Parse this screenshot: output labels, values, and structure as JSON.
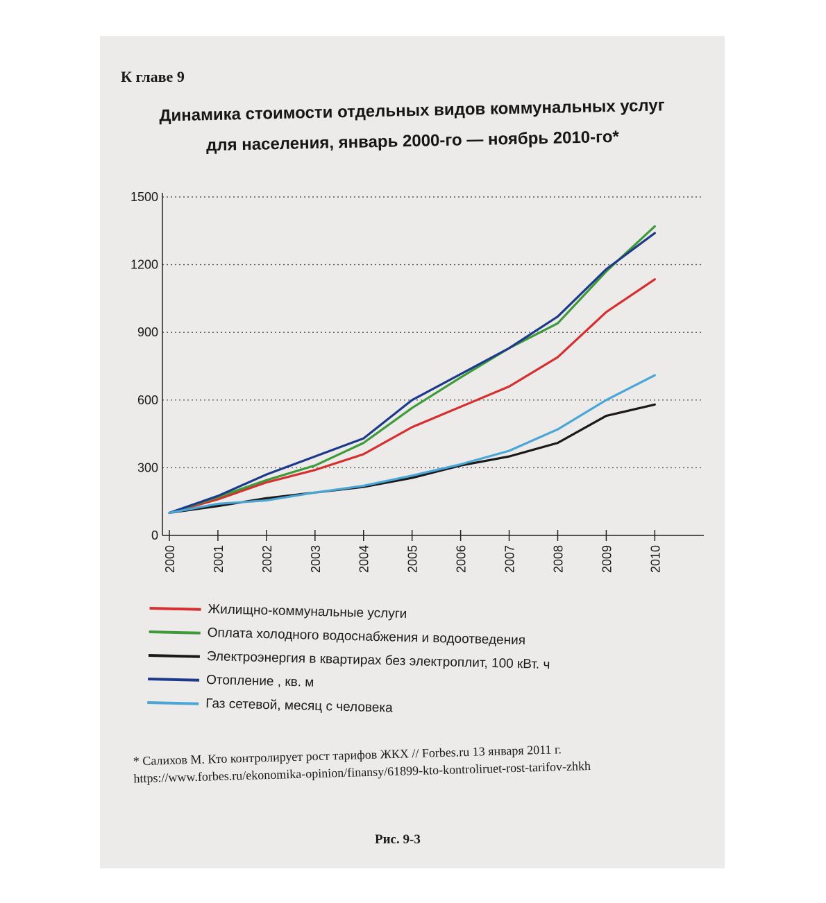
{
  "page": {
    "chapter": "К главе 9",
    "title_line1": "Динамика стоимости отдельных видов коммунальных услуг",
    "title_line2": "для населения, январь 2000-го — ноябрь 2010-го*",
    "footnote": "* Салихов М. Кто контролирует рост тарифов ЖКХ // Forbes.ru 13 января 2011 г. https://www.forbes.ru/ekonomika-opinion/finansy/61899-kto-kontroliruet-rost-tarifov-zhkh",
    "figure_label": "Рис. 9-3"
  },
  "chart_data": {
    "type": "line",
    "title": "Динамика стоимости отдельных видов коммунальных услуг для населения, январь 2000-го — ноябрь 2010-го*",
    "x": [
      "2000",
      "2001",
      "2002",
      "2003",
      "2004",
      "2005",
      "2006",
      "2007",
      "2008",
      "2009",
      "2010"
    ],
    "ylim": [
      0,
      1500
    ],
    "yticks": [
      0,
      300,
      600,
      900,
      1200,
      1500
    ],
    "grid": true,
    "legend_position": "bottom",
    "series": [
      {
        "name": "Жилищно-коммунальные услуги",
        "color": "#d62f2f",
        "values": [
          100,
          160,
          235,
          290,
          360,
          480,
          570,
          660,
          790,
          990,
          1135
        ]
      },
      {
        "name": "Оплата холодного водоснабжения и водоотведения",
        "color": "#3f9a3a",
        "values": [
          100,
          170,
          245,
          310,
          410,
          565,
          700,
          830,
          940,
          1170,
          1370
        ]
      },
      {
        "name": "Электроэнергия в квартирах без электроплит, 100 кВт. ч",
        "color": "#1a1a1a",
        "values": [
          100,
          130,
          165,
          190,
          215,
          255,
          310,
          350,
          410,
          530,
          580
        ]
      },
      {
        "name": "Отопление , кв. м",
        "color": "#1d3a8a",
        "values": [
          100,
          175,
          270,
          350,
          430,
          600,
          715,
          830,
          970,
          1180,
          1340
        ]
      },
      {
        "name": "Газ сетевой, месяц с человека",
        "color": "#4aa6d6",
        "values": [
          100,
          140,
          155,
          190,
          220,
          265,
          315,
          375,
          470,
          600,
          710
        ]
      }
    ]
  }
}
